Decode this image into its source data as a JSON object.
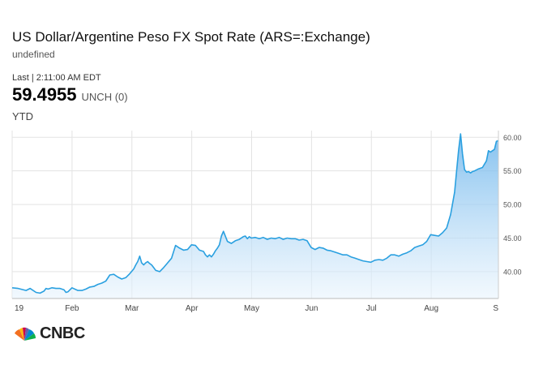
{
  "header": {
    "title": "US Dollar/Argentine Peso FX Spot Rate (ARS=:Exchange)",
    "subtitle": "undefined",
    "last_label": "Last | 2:11:00 AM EDT",
    "price": "59.4955",
    "change": "UNCH (0)",
    "range": "YTD"
  },
  "brand": {
    "logo_text": "CNBC"
  },
  "colors": {
    "line": "#2aa0e0",
    "fill_top": "#6fb6ec",
    "fill_bottom": "#e9f4fd",
    "grid": "#e3e3e3"
  },
  "chart_data": {
    "type": "area",
    "xlabel": "",
    "ylabel": "",
    "ylim": [
      36,
      61
    ],
    "grid": true,
    "x_ticks": [
      "19",
      "Feb",
      "Mar",
      "Apr",
      "May",
      "Jun",
      "Jul",
      "Aug",
      "S"
    ],
    "y_ticks": [
      "40.00",
      "45.00",
      "50.00",
      "55.00",
      "60.00"
    ],
    "series": [
      {
        "x": [
          0,
          3,
          7,
          9,
          12,
          14,
          16,
          17,
          18,
          20,
          22,
          24,
          26,
          27,
          28,
          30,
          33,
          35,
          37,
          39,
          41,
          43,
          45,
          47,
          49,
          51,
          53,
          55,
          57,
          59,
          61,
          62,
          63,
          64,
          65,
          66,
          67,
          68,
          69,
          70,
          71,
          72,
          74,
          76,
          78,
          80,
          82,
          84,
          86,
          88,
          90,
          92,
          94,
          96,
          97,
          98,
          99,
          100,
          101,
          102,
          103,
          104,
          105,
          106,
          108,
          110,
          112,
          114,
          116,
          117,
          118,
          119,
          120,
          122,
          124,
          126,
          128,
          130,
          132,
          134,
          136,
          138,
          140,
          142,
          144,
          146,
          148,
          150,
          152,
          154,
          156,
          158,
          160,
          162,
          164,
          166,
          168,
          170,
          172,
          174,
          176,
          178,
          180,
          182,
          184,
          186,
          188,
          190,
          192,
          194,
          196,
          198,
          200,
          202,
          204,
          206,
          208,
          210,
          212,
          214,
          216,
          218,
          220,
          222,
          223,
          224,
          225,
          226,
          227,
          228,
          229,
          230,
          231,
          232,
          234,
          236,
          238,
          239,
          240,
          241,
          242,
          243,
          244
        ],
        "values": [
          37.6,
          37.5,
          37.2,
          37.5,
          36.9,
          36.8,
          37.1,
          37.5,
          37.4,
          37.6,
          37.5,
          37.5,
          37.3,
          36.9,
          37.0,
          37.6,
          37.2,
          37.2,
          37.4,
          37.7,
          37.8,
          38.1,
          38.3,
          38.6,
          39.5,
          39.6,
          39.2,
          38.9,
          39.1,
          39.7,
          40.4,
          41.0,
          41.5,
          42.3,
          41.3,
          41.0,
          41.3,
          41.5,
          41.2,
          41.0,
          40.6,
          40.2,
          40.0,
          40.6,
          41.3,
          42.0,
          43.9,
          43.5,
          43.2,
          43.3,
          44.0,
          43.9,
          43.2,
          43.0,
          42.5,
          42.2,
          42.5,
          42.2,
          42.6,
          43.1,
          43.5,
          44.0,
          45.3,
          46.0,
          44.5,
          44.2,
          44.6,
          44.8,
          45.2,
          45.3,
          44.9,
          45.2,
          45.0,
          45.1,
          44.9,
          45.1,
          44.8,
          45.0,
          44.9,
          45.1,
          44.8,
          45.0,
          44.9,
          44.9,
          44.7,
          44.8,
          44.6,
          43.6,
          43.3,
          43.6,
          43.5,
          43.2,
          43.1,
          42.9,
          42.7,
          42.5,
          42.5,
          42.2,
          42.0,
          41.8,
          41.6,
          41.5,
          41.4,
          41.7,
          41.8,
          41.7,
          42.0,
          42.5,
          42.5,
          42.3,
          42.6,
          42.8,
          43.1,
          43.6,
          43.8,
          44.0,
          44.5,
          45.5,
          45.4,
          45.3,
          45.8,
          46.5,
          48.5,
          51.8,
          55.0,
          58.0,
          60.5,
          57.5,
          55.2,
          54.8,
          54.9,
          54.7,
          54.9,
          55.0,
          55.3,
          55.5,
          56.5,
          58.0,
          57.8,
          58.0,
          58.2,
          59.4,
          59.5
        ],
        "area": true
      }
    ]
  }
}
